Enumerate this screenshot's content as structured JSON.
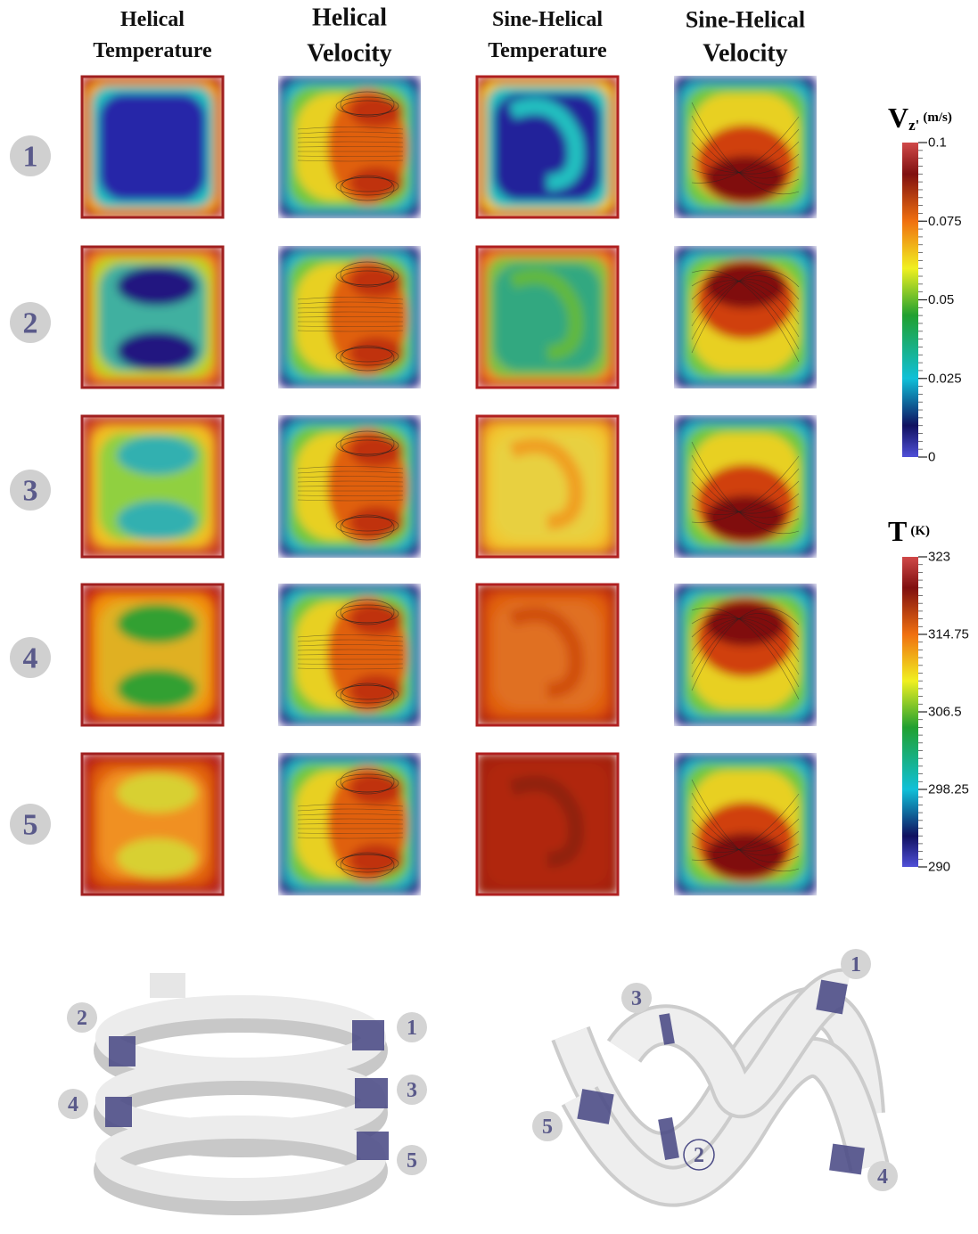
{
  "columns": [
    {
      "line1": "Helical",
      "line2": "Temperature"
    },
    {
      "line1": "Helical",
      "line2": "Velocity"
    },
    {
      "line1": "Sine-Helical",
      "line2": "Temperature"
    },
    {
      "line1": "Sine-Helical",
      "line2": "Velocity"
    }
  ],
  "rows": [
    "1",
    "2",
    "3",
    "4",
    "5"
  ],
  "colorbars": [
    {
      "symbol": "V",
      "subscript": "z'",
      "unit": "(m/s)",
      "ticks": [
        0.1,
        0.075,
        0.05,
        0.025,
        0
      ]
    },
    {
      "symbol": "T",
      "unit": "(K)",
      "ticks": [
        323,
        314.75,
        306.5,
        298.25,
        290
      ]
    }
  ],
  "diagrams": [
    {
      "labels": [
        "1",
        "2",
        "3",
        "4",
        "5"
      ]
    },
    {
      "labels": [
        "1",
        "2",
        "3",
        "4",
        "5"
      ]
    }
  ]
}
